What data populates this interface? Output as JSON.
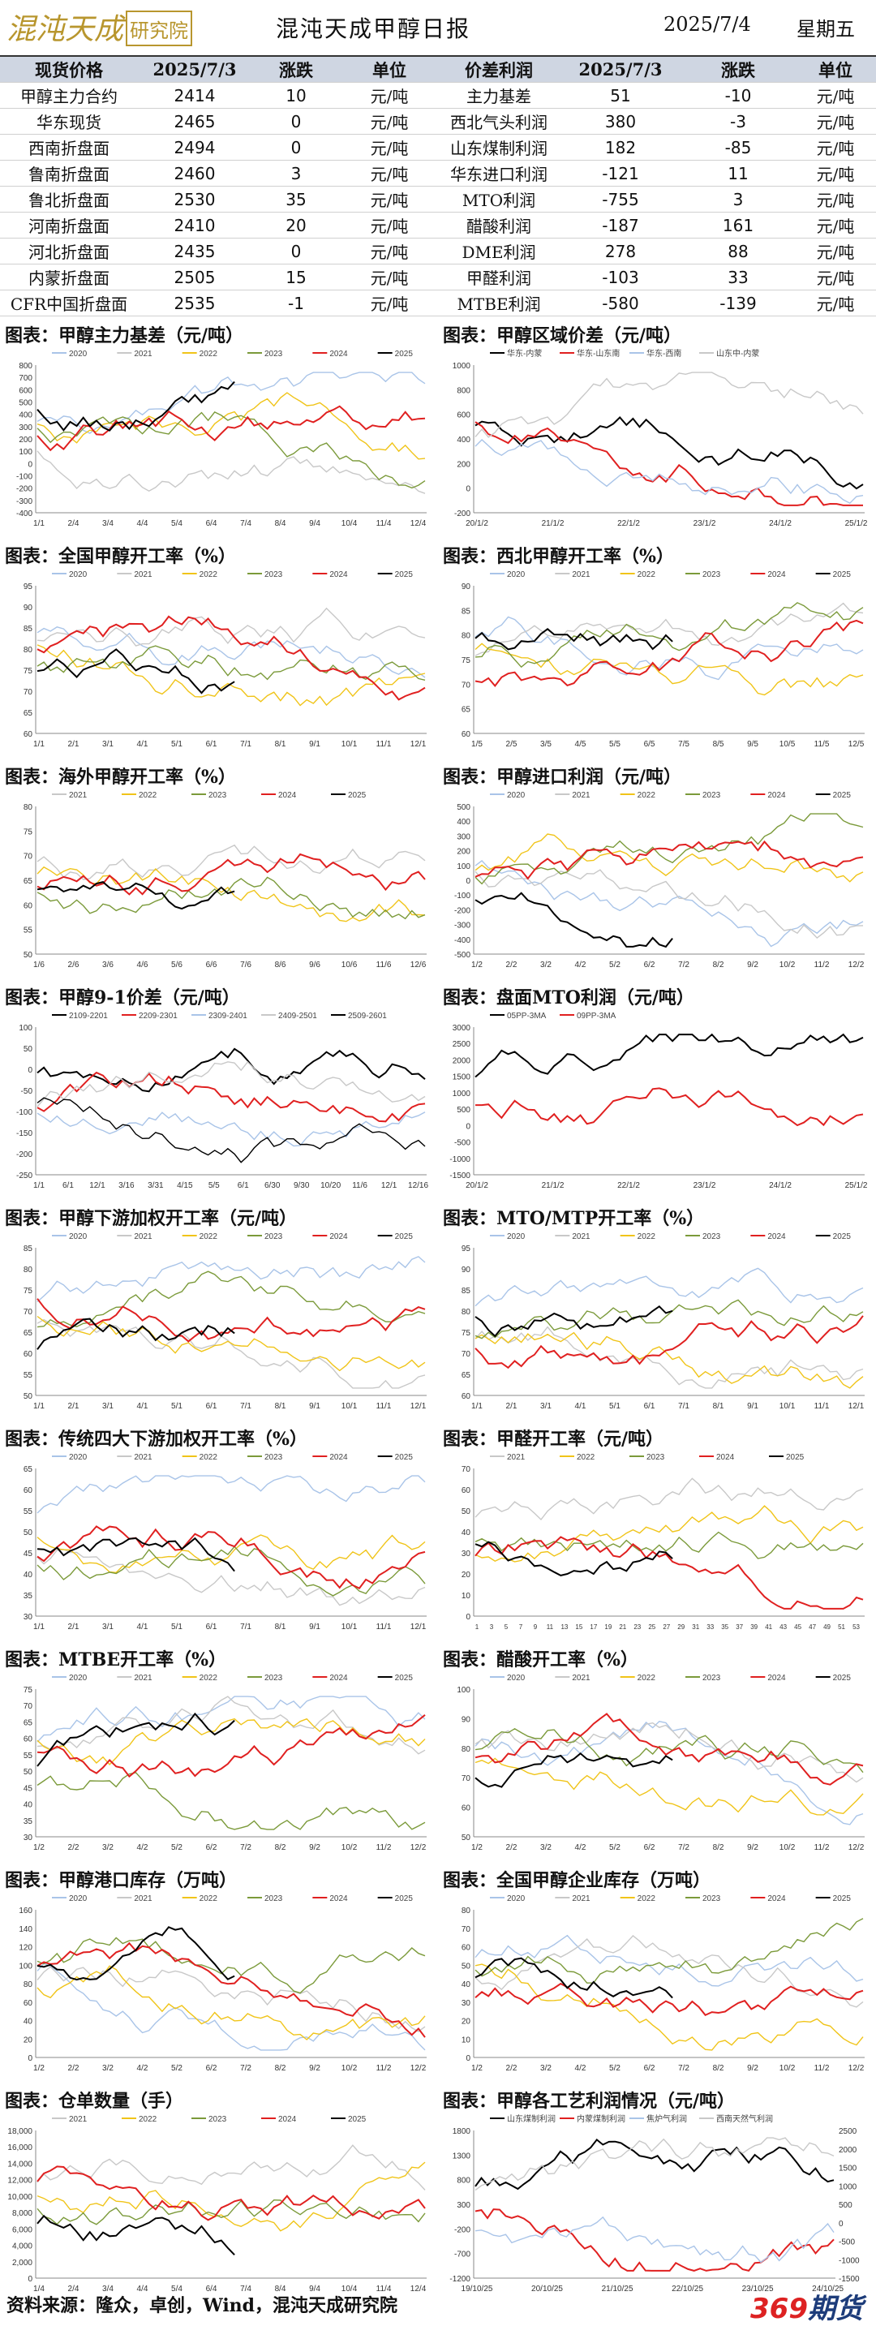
{
  "header": {
    "title": "混沌天成甲醇日报",
    "date": "2025/7/4",
    "weekday": "星期五",
    "logo_text": "混沌天成研究院"
  },
  "table": {
    "columns": [
      "现货价格",
      "2025/7/3",
      "涨跌",
      "单位",
      "价差利润",
      "2025/7/3",
      "涨跌",
      "单位"
    ],
    "rows": [
      [
        "甲醇主力合约",
        "2414",
        "10",
        "元/吨",
        "主力基差",
        "51",
        "-10",
        "元/吨"
      ],
      [
        "华东现货",
        "2465",
        "0",
        "元/吨",
        "西北气头利润",
        "380",
        "-3",
        "元/吨"
      ],
      [
        "西南折盘面",
        "2494",
        "0",
        "元/吨",
        "山东煤制利润",
        "182",
        "-85",
        "元/吨"
      ],
      [
        "鲁南折盘面",
        "2460",
        "3",
        "元/吨",
        "华东进口利润",
        "-121",
        "11",
        "元/吨"
      ],
      [
        "鲁北折盘面",
        "2530",
        "35",
        "元/吨",
        "MTO利润",
        "-755",
        "3",
        "元/吨"
      ],
      [
        "河南折盘面",
        "2410",
        "20",
        "元/吨",
        "醋酸利润",
        "-187",
        "161",
        "元/吨"
      ],
      [
        "河北折盘面",
        "2435",
        "0",
        "元/吨",
        "DME利润",
        "278",
        "88",
        "元/吨"
      ],
      [
        "内蒙折盘面",
        "2505",
        "15",
        "元/吨",
        "甲醛利润",
        "-103",
        "33",
        "元/吨"
      ],
      [
        "CFR中国折盘面",
        "2535",
        "-1",
        "元/吨",
        "MTBE利润",
        "-580",
        "-139",
        "元/吨"
      ]
    ]
  },
  "colors": {
    "2020": "#a9c4e8",
    "2021": "#c8c8c8",
    "2022": "#f0c419",
    "2023": "#7b9a3a",
    "2024": "#e02020",
    "2025": "#000000",
    "header_bg": "#cfd6e2"
  },
  "chart_data": [
    {
      "title": "图表：甲醇主力基差（元/吨）",
      "type": "line",
      "legend": [
        "2020",
        "2021",
        "2022",
        "2023",
        "2024",
        "2025"
      ],
      "ylim": [
        -400,
        800
      ],
      "yticks": [
        "800",
        "700",
        "600",
        "500",
        "400",
        "300",
        "200",
        "100",
        "0",
        "-100",
        "-200",
        "-300",
        "-400"
      ],
      "xticks": [
        "1/1",
        "2/4",
        "3/4",
        "4/4",
        "5/4",
        "6/4",
        "7/4",
        "8/4",
        "9/4",
        "10/4",
        "11/4",
        "12/4"
      ],
      "grid": false
    },
    {
      "title": "图表：甲醇区域价差（元/吨）",
      "type": "line",
      "legend": [
        "华东-内蒙",
        "华东-山东南",
        "华东-西南",
        "山东中-内蒙"
      ],
      "ylim": [
        -200,
        1000
      ],
      "yticks": [
        "1000",
        "800",
        "600",
        "400",
        "200",
        "0",
        "-200"
      ],
      "xticks": [
        "20/1/2",
        "21/1/2",
        "22/1/2",
        "23/1/2",
        "24/1/2",
        "25/1/2"
      ],
      "grid": false
    },
    {
      "title": "图表：全国甲醇开工率（%）",
      "type": "line",
      "legend": [
        "2020",
        "2021",
        "2022",
        "2023",
        "2024",
        "2025"
      ],
      "ylim": [
        60,
        95
      ],
      "yticks": [
        "95",
        "90",
        "85",
        "80",
        "75",
        "70",
        "65",
        "60"
      ],
      "xticks": [
        "1/1",
        "2/1",
        "3/1",
        "4/1",
        "5/1",
        "6/1",
        "7/1",
        "8/1",
        "9/1",
        "10/1",
        "11/1",
        "12/1"
      ],
      "grid": false
    },
    {
      "title": "图表：西北甲醇开工率（%）",
      "type": "line",
      "legend": [
        "2020",
        "2021",
        "2022",
        "2023",
        "2024",
        "2025"
      ],
      "ylim": [
        60,
        90
      ],
      "yticks": [
        "90",
        "85",
        "80",
        "75",
        "70",
        "65",
        "60"
      ],
      "xticks": [
        "1/5",
        "2/5",
        "3/5",
        "4/5",
        "5/5",
        "6/5",
        "7/5",
        "8/5",
        "9/5",
        "10/5",
        "11/5",
        "12/5"
      ],
      "grid": false
    },
    {
      "title": "图表：海外甲醇开工率（%）",
      "type": "line",
      "legend": [
        "2021",
        "2022",
        "2023",
        "2024",
        "2025"
      ],
      "ylim": [
        50,
        80
      ],
      "yticks": [
        "80",
        "75",
        "70",
        "65",
        "60",
        "55",
        "50"
      ],
      "xticks": [
        "1/6",
        "2/6",
        "3/6",
        "4/6",
        "5/6",
        "6/6",
        "7/6",
        "8/6",
        "9/6",
        "10/6",
        "11/6",
        "12/6"
      ],
      "grid": false
    },
    {
      "title": "图表：甲醇进口利润（元/吨）",
      "type": "line",
      "legend": [
        "2020",
        "2021",
        "2022",
        "2023",
        "2024",
        "2025"
      ],
      "ylim": [
        -500,
        500
      ],
      "yticks": [
        "500",
        "400",
        "300",
        "200",
        "100",
        "0",
        "-100",
        "-200",
        "-300",
        "-400",
        "-500"
      ],
      "xticks": [
        "1/2",
        "2/2",
        "3/2",
        "4/2",
        "5/2",
        "6/2",
        "7/2",
        "8/2",
        "9/2",
        "10/2",
        "11/2",
        "12/2"
      ],
      "grid": false
    },
    {
      "title": "图表：甲醇9-1价差（元/吨）",
      "type": "line",
      "legend": [
        "2109-2201",
        "2209-2301",
        "2309-2401",
        "2409-2501",
        "2509-2601"
      ],
      "ylim": [
        -250,
        100
      ],
      "yticks": [
        "100",
        "50",
        "0",
        "-50",
        "-100",
        "-150",
        "-200",
        "-250"
      ],
      "xticks": [
        "1/1",
        "6/1",
        "12/1",
        "3/16",
        "3/31",
        "4/15",
        "5/5",
        "6/1",
        "6/30",
        "9/30",
        "10/20",
        "11/6",
        "12/1",
        "12/16"
      ],
      "grid": false
    },
    {
      "title": "图表：盘面MTO利润（元/吨）",
      "type": "line",
      "legend": [
        "05PP-3MA",
        "09PP-3MA"
      ],
      "ylim": [
        -1500,
        3000
      ],
      "yticks": [
        "3000",
        "2500",
        "2000",
        "1500",
        "1000",
        "500",
        "0",
        "-500",
        "-1000",
        "-1500"
      ],
      "xticks": [
        "20/1/2",
        "21/1/2",
        "22/1/2",
        "23/1/2",
        "24/1/2",
        "25/1/2"
      ],
      "grid": false
    },
    {
      "title": "图表：甲醇下游加权开工率（元/吨）",
      "type": "line",
      "legend": [
        "2020",
        "2021",
        "2022",
        "2023",
        "2024",
        "2025"
      ],
      "ylim": [
        50,
        85
      ],
      "yticks": [
        "85",
        "80",
        "75",
        "70",
        "65",
        "60",
        "55",
        "50"
      ],
      "xticks": [
        "1/1",
        "2/1",
        "3/1",
        "4/1",
        "5/1",
        "6/1",
        "7/1",
        "8/1",
        "9/1",
        "10/1",
        "11/1",
        "12/1"
      ],
      "grid": false
    },
    {
      "title": "图表：MTO/MTP开工率（%）",
      "type": "line",
      "legend": [
        "2020",
        "2021",
        "2022",
        "2023",
        "2024",
        "2025"
      ],
      "ylim": [
        60,
        95
      ],
      "yticks": [
        "95",
        "90",
        "85",
        "80",
        "75",
        "70",
        "65",
        "60"
      ],
      "xticks": [
        "1/1",
        "2/1",
        "3/1",
        "4/1",
        "5/1",
        "6/1",
        "7/1",
        "8/1",
        "9/1",
        "10/1",
        "11/1",
        "12/1"
      ],
      "grid": false
    },
    {
      "title": "图表：传统四大下游加权开工率（%）",
      "type": "line",
      "legend": [
        "2020",
        "2021",
        "2022",
        "2023",
        "2024",
        "2025"
      ],
      "ylim": [
        30,
        65
      ],
      "yticks": [
        "65",
        "60",
        "55",
        "50",
        "45",
        "40",
        "35",
        "30"
      ],
      "xticks": [
        "1/1",
        "2/1",
        "3/1",
        "4/1",
        "5/1",
        "6/1",
        "7/1",
        "8/1",
        "9/1",
        "10/1",
        "11/1",
        "12/1"
      ],
      "grid": false
    },
    {
      "title": "图表：甲醛开工率（元/吨）",
      "type": "line",
      "legend": [
        "2021",
        "2022",
        "2023",
        "2024",
        "2025"
      ],
      "ylim": [
        0,
        70
      ],
      "yticks": [
        "70",
        "60",
        "50",
        "40",
        "30",
        "20",
        "10",
        "0"
      ],
      "xticks": [
        "1",
        "3",
        "5",
        "7",
        "9",
        "11",
        "13",
        "15",
        "17",
        "19",
        "21",
        "23",
        "25",
        "27",
        "29",
        "31",
        "33",
        "35",
        "37",
        "39",
        "41",
        "43",
        "45",
        "47",
        "49",
        "51",
        "53"
      ],
      "grid": false
    },
    {
      "title": "图表：MTBE开工率（%）",
      "type": "line",
      "legend": [
        "2020",
        "2021",
        "2022",
        "2023",
        "2024",
        "2025"
      ],
      "ylim": [
        30,
        75
      ],
      "yticks": [
        "75",
        "70",
        "65",
        "60",
        "55",
        "50",
        "45",
        "40",
        "35",
        "30"
      ],
      "xticks": [
        "1/2",
        "2/2",
        "3/2",
        "4/2",
        "5/2",
        "6/2",
        "7/2",
        "8/2",
        "9/2",
        "10/2",
        "11/2",
        "12/2"
      ],
      "grid": false
    },
    {
      "title": "图表：醋酸开工率（%）",
      "type": "line",
      "legend": [
        "2020",
        "2021",
        "2022",
        "2023",
        "2024",
        "2025"
      ],
      "ylim": [
        50,
        100
      ],
      "yticks": [
        "100",
        "90",
        "80",
        "70",
        "60",
        "50"
      ],
      "xticks": [
        "1/2",
        "2/2",
        "3/2",
        "4/2",
        "5/2",
        "6/2",
        "7/2",
        "8/2",
        "9/2",
        "10/2",
        "11/2",
        "12/2"
      ],
      "grid": false
    },
    {
      "title": "图表：甲醇港口库存（万吨）",
      "type": "line",
      "legend": [
        "2020",
        "2021",
        "2022",
        "2023",
        "2024",
        "2025"
      ],
      "ylim": [
        0,
        160
      ],
      "yticks": [
        "160",
        "140",
        "120",
        "100",
        "80",
        "60",
        "40",
        "20",
        "0"
      ],
      "xticks": [
        "1/2",
        "2/2",
        "3/2",
        "4/2",
        "5/2",
        "6/2",
        "7/2",
        "8/2",
        "9/2",
        "10/2",
        "11/2",
        "12/2"
      ],
      "grid": false
    },
    {
      "title": "图表：全国甲醇企业库存（万吨）",
      "type": "line",
      "legend": [
        "2020",
        "2021",
        "2022",
        "2023",
        "2024",
        "2025"
      ],
      "ylim": [
        0,
        80
      ],
      "yticks": [
        "80",
        "70",
        "60",
        "50",
        "40",
        "30",
        "20",
        "10",
        "0"
      ],
      "xticks": [
        "1/2",
        "2/2",
        "3/2",
        "4/2",
        "5/2",
        "6/2",
        "7/2",
        "8/2",
        "9/2",
        "10/2",
        "11/2",
        "12/2"
      ],
      "grid": false
    },
    {
      "title": "图表：仓单数量（手）",
      "type": "line",
      "legend": [
        "2021",
        "2022",
        "2023",
        "2024",
        "2025"
      ],
      "ylim": [
        0,
        18000
      ],
      "yticks": [
        "18,000",
        "16,000",
        "14,000",
        "12,000",
        "10,000",
        "8,000",
        "6,000",
        "4,000",
        "2,000",
        "0"
      ],
      "xticks": [
        "1/4",
        "2/4",
        "3/4",
        "4/4",
        "5/4",
        "6/4",
        "7/4",
        "8/4",
        "9/4",
        "10/4",
        "11/4",
        "12/4"
      ],
      "grid": false
    },
    {
      "title": "图表：甲醇各工艺利润情况（元/吨）",
      "type": "line",
      "legend": [
        "山东煤制利润",
        "内蒙煤制利润",
        "焦炉气利润",
        "西南天然气利润"
      ],
      "ylim": [
        -1200,
        1800
      ],
      "yticks": [
        "1800",
        "1300",
        "800",
        "300",
        "-200",
        "-700",
        "-1200"
      ],
      "y2ticks": [
        "2500",
        "2000",
        "1500",
        "1000",
        "500",
        "0",
        "-500",
        "-1000",
        "-1500"
      ],
      "xticks": [
        "19/10/25",
        "20/10/25",
        "21/10/25",
        "22/10/25",
        "23/10/25",
        "24/10/25"
      ],
      "grid": false
    }
  ],
  "footer": {
    "source": "资料来源：隆众，卓创，Wind，混沌天成研究院",
    "brand_prefix": "369",
    "brand_suffix": "期货"
  }
}
